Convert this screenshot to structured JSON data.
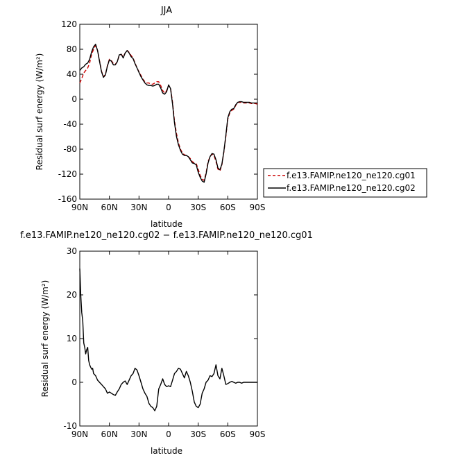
{
  "chart_data": [
    {
      "type": "line",
      "title": "JJA",
      "xlabel": "latitude",
      "ylabel": "Residual surf energy (W/m²)",
      "xlim": [
        90,
        -90
      ],
      "ylim": [
        -160,
        120
      ],
      "x_ticks": [
        90,
        60,
        30,
        0,
        -30,
        -60,
        -90
      ],
      "x_tick_labels": [
        "90N",
        "60N",
        "30N",
        "0",
        "30S",
        "60S",
        "90S"
      ],
      "y_ticks": [
        -160,
        -120,
        -80,
        -40,
        0,
        40,
        80,
        120
      ],
      "y_tick_labels": [
        "-160",
        "-120",
        "-80",
        "-40",
        "0",
        "40",
        "80",
        "120"
      ],
      "legend": "right",
      "series": [
        {
          "name": "f.e13.FAMIP.ne120_ne120.cg01",
          "color": "#cc0000",
          "dash": "dashed",
          "x": [
            90,
            88,
            86,
            84,
            82,
            80,
            78,
            76,
            74,
            72,
            70,
            68,
            66,
            64,
            62,
            60,
            58,
            56,
            54,
            52,
            50,
            48,
            46,
            44,
            42,
            40,
            38,
            36,
            34,
            32,
            30,
            28,
            26,
            24,
            22,
            20,
            18,
            16,
            14,
            12,
            10,
            8,
            6,
            4,
            2,
            0,
            -2,
            -4,
            -6,
            -8,
            -10,
            -12,
            -14,
            -16,
            -18,
            -20,
            -22,
            -24,
            -26,
            -28,
            -30,
            -32,
            -34,
            -36,
            -38,
            -40,
            -42,
            -44,
            -46,
            -48,
            -50,
            -52,
            -54,
            -56,
            -58,
            -60,
            -62,
            -64,
            -66,
            -68,
            -70,
            -72,
            -74,
            -76,
            -78,
            -80,
            -82,
            -84,
            -86,
            -88,
            -90
          ],
          "y": [
            26,
            33,
            42,
            46,
            50,
            58,
            72,
            80,
            86,
            78,
            62,
            45,
            36,
            40,
            54,
            64,
            62,
            57,
            56,
            60,
            70,
            72,
            68,
            74,
            78,
            75,
            70,
            66,
            58,
            50,
            44,
            38,
            32,
            28,
            26,
            26,
            24,
            24,
            26,
            28,
            28,
            22,
            14,
            10,
            14,
            22,
            18,
            -5,
            -35,
            -55,
            -70,
            -80,
            -86,
            -89,
            -90,
            -92,
            -95,
            -100,
            -102,
            -103,
            -112,
            -122,
            -128,
            -130,
            -118,
            -100,
            -92,
            -88,
            -90,
            -100,
            -112,
            -115,
            -105,
            -85,
            -60,
            -32,
            -22,
            -18,
            -16,
            -10,
            -5,
            -5,
            -5,
            -6,
            -6,
            -6,
            -6,
            -7,
            -7,
            -7,
            -8
          ]
        },
        {
          "name": "f.e13.FAMIP.ne120_ne120.cg02",
          "color": "#000000",
          "dash": "solid",
          "x": [
            90,
            88,
            86,
            84,
            82,
            80,
            78,
            76,
            74,
            72,
            70,
            68,
            66,
            64,
            62,
            60,
            58,
            56,
            54,
            52,
            50,
            48,
            46,
            44,
            42,
            40,
            38,
            36,
            34,
            32,
            30,
            28,
            26,
            24,
            22,
            20,
            18,
            16,
            14,
            12,
            10,
            8,
            6,
            4,
            2,
            0,
            -2,
            -4,
            -6,
            -8,
            -10,
            -12,
            -14,
            -16,
            -18,
            -20,
            -22,
            -24,
            -26,
            -28,
            -30,
            -32,
            -34,
            -36,
            -38,
            -40,
            -42,
            -44,
            -46,
            -48,
            -50,
            -52,
            -54,
            -56,
            -58,
            -60,
            -62,
            -64,
            -66,
            -68,
            -70,
            -72,
            -74,
            -76,
            -78,
            -80,
            -82,
            -84,
            -86,
            -88,
            -90
          ],
          "y": [
            46,
            50,
            52,
            56,
            58,
            64,
            76,
            84,
            88,
            78,
            61,
            44,
            35,
            39,
            53,
            63,
            61,
            55,
            55,
            60,
            71,
            72,
            66,
            74,
            78,
            74,
            68,
            65,
            57,
            50,
            43,
            36,
            31,
            26,
            23,
            22,
            22,
            21,
            22,
            24,
            24,
            18,
            10,
            8,
            12,
            23,
            17,
            -8,
            -38,
            -60,
            -73,
            -82,
            -88,
            -90,
            -90,
            -92,
            -97,
            -102,
            -103,
            -105,
            -117,
            -125,
            -131,
            -133,
            -120,
            -102,
            -92,
            -87,
            -88,
            -97,
            -110,
            -113,
            -104,
            -84,
            -58,
            -30,
            -20,
            -16,
            -15,
            -9,
            -5,
            -4,
            -4,
            -5,
            -5,
            -5,
            -5,
            -6,
            -6,
            -6,
            -6
          ]
        }
      ]
    },
    {
      "type": "line",
      "title": "f.e13.FAMIP.ne120_ne120.cg02 − f.e13.FAMIP.ne120_ne120.cg01",
      "xlabel": "latitude",
      "ylabel": "Residual surf energy (W/m²)",
      "xlim": [
        90,
        -90
      ],
      "ylim": [
        -10,
        30
      ],
      "x_ticks": [
        90,
        60,
        30,
        0,
        -30,
        -60,
        -90
      ],
      "x_tick_labels": [
        "90N",
        "60N",
        "30N",
        "0",
        "30S",
        "60S",
        "90S"
      ],
      "y_ticks": [
        -10,
        0,
        10,
        20,
        30
      ],
      "y_tick_labels": [
        "-10",
        "0",
        "10",
        "20",
        "30"
      ],
      "series": [
        {
          "color": "#000000",
          "dash": "solid",
          "x": [
            90,
            89,
            88,
            87,
            86,
            85,
            84,
            83,
            82,
            81,
            80,
            79,
            78,
            77,
            76,
            74,
            72,
            70,
            68,
            66,
            64,
            62,
            60,
            58,
            56,
            54,
            52,
            50,
            48,
            46,
            44,
            42,
            40,
            38,
            36,
            34,
            32,
            30,
            28,
            26,
            24,
            22,
            20,
            18,
            16,
            14,
            12,
            10,
            8,
            6,
            4,
            2,
            0,
            -2,
            -4,
            -6,
            -8,
            -10,
            -12,
            -14,
            -16,
            -18,
            -20,
            -22,
            -24,
            -26,
            -28,
            -30,
            -32,
            -34,
            -36,
            -38,
            -40,
            -42,
            -44,
            -46,
            -48,
            -50,
            -52,
            -54,
            -56,
            -58,
            -60,
            -62,
            -64,
            -66,
            -68,
            -70,
            -72,
            -74,
            -76,
            -78,
            -80,
            -82,
            -84,
            -86,
            -88,
            -90
          ],
          "y": [
            26,
            20,
            16,
            14,
            9,
            8,
            6.5,
            7.5,
            8,
            5,
            4,
            3.5,
            3,
            3.2,
            2,
            1.5,
            0.5,
            0,
            -0.5,
            -1,
            -1.5,
            -2.5,
            -2.2,
            -2.5,
            -2.8,
            -3,
            -2.2,
            -1.5,
            -0.5,
            0,
            0.3,
            -0.5,
            0.5,
            1.5,
            2,
            3.2,
            2.8,
            1.5,
            0,
            -1.5,
            -2.5,
            -3.2,
            -4.8,
            -5.5,
            -5.8,
            -6.5,
            -5.5,
            -1.5,
            -0.5,
            0.8,
            -0.5,
            -1,
            -0.8,
            -1,
            0.5,
            2,
            2.5,
            3.2,
            3,
            2,
            1,
            2.5,
            1.5,
            0,
            -2,
            -4.5,
            -5.5,
            -5.8,
            -5,
            -2.5,
            -1.5,
            0,
            0.5,
            1.5,
            1.3,
            2,
            4,
            1.5,
            0.8,
            3.2,
            1.5,
            -0.5,
            -0.3,
            0,
            0.2,
            0,
            -0.2,
            0,
            0,
            -0.2,
            0,
            0,
            0,
            0,
            0,
            0,
            0,
            0
          ]
        }
      ]
    }
  ]
}
